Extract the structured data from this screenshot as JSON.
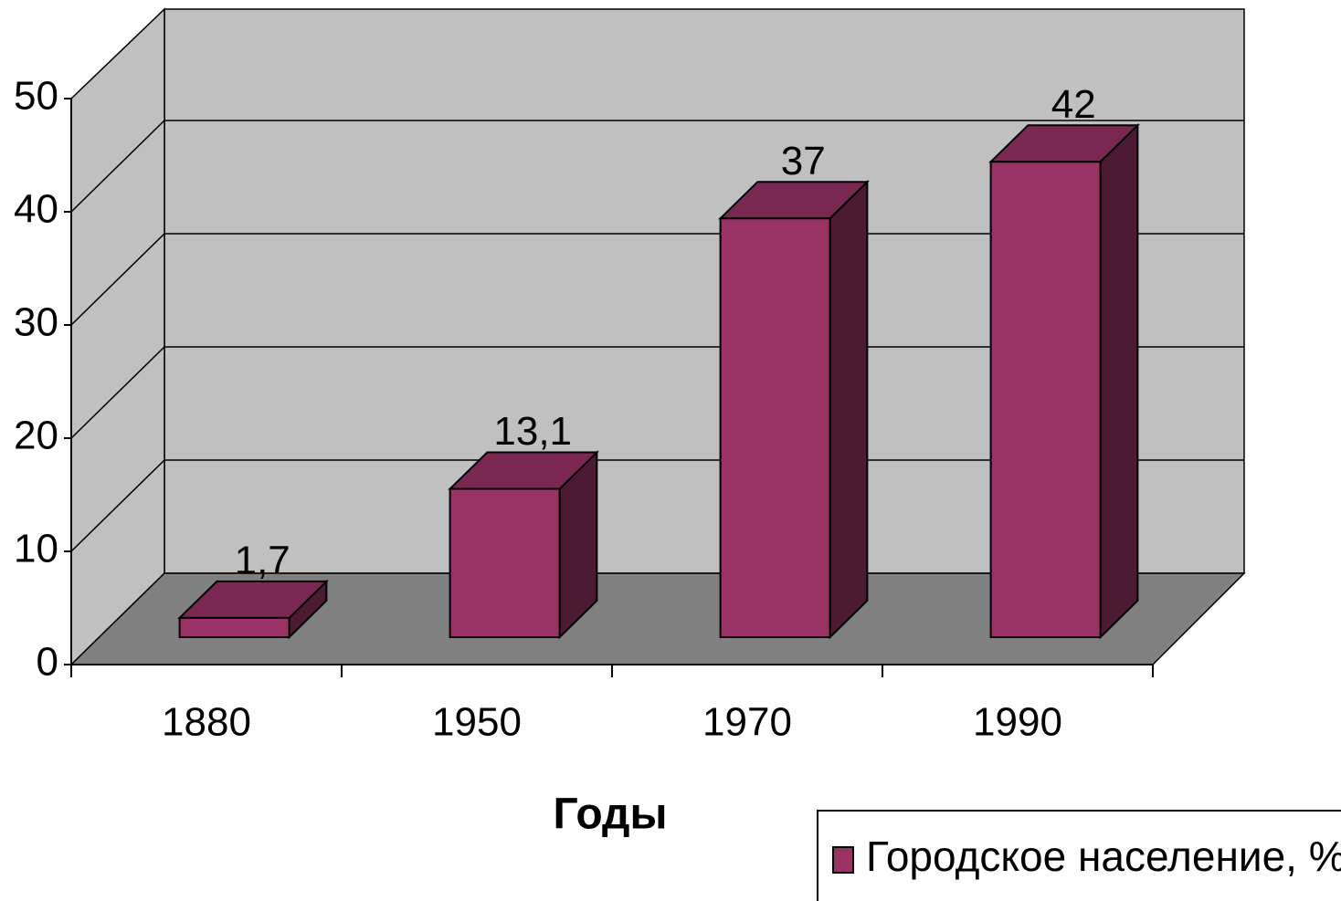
{
  "chart_data": {
    "type": "bar3d",
    "categories": [
      "1880",
      "1950",
      "1970",
      "1990"
    ],
    "values": [
      1.7,
      13.1,
      37,
      42
    ],
    "value_labels": [
      "1,7",
      "13,1",
      "37",
      "42"
    ],
    "x_label": "Годы",
    "series_name": "Городское население, %",
    "color": "#993366",
    "ylim": [
      0,
      50
    ],
    "yticks": [
      0,
      10,
      20,
      30,
      40,
      50
    ],
    "grid": true,
    "legend": "bottom-right"
  }
}
